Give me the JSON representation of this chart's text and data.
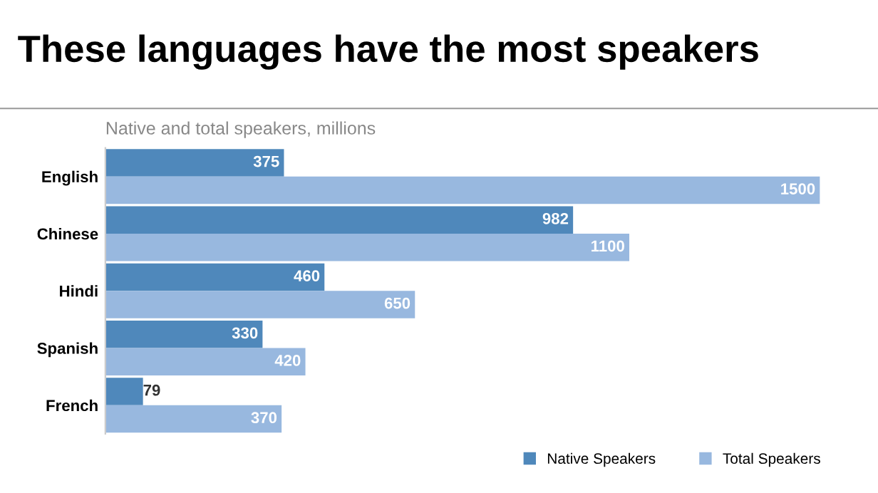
{
  "chart_data": {
    "type": "bar",
    "orientation": "horizontal",
    "title": "These languages have the most speakers",
    "subtitle": "Native and total speakers, millions",
    "categories": [
      "English",
      "Chinese",
      "Hindi",
      "Spanish",
      "French"
    ],
    "series": [
      {
        "name": "Native Speakers",
        "color": "#4f88bb",
        "values": [
          375,
          982,
          460,
          330,
          79
        ]
      },
      {
        "name": "Total Speakers",
        "color": "#98b8df",
        "values": [
          1500,
          1100,
          650,
          420,
          370
        ]
      }
    ],
    "data_labels": true,
    "legend": "bottom right",
    "grid": false
  }
}
